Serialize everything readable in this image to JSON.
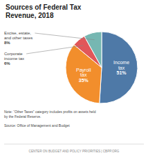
{
  "chart_data": {
    "type": "pie",
    "title": "Sources of Federal Tax\nRevenue, 2018",
    "categories": [
      "Income\ntax",
      "Payroll\ntax",
      "Corporate\nincome tax",
      "Excise, estate,\nand other taxes"
    ],
    "values": [
      51,
      35,
      6,
      8
    ],
    "value_labels": [
      "51%",
      "35%",
      "6%",
      "8%"
    ],
    "annotations": [
      "Note: “Other Taxes” category includes profits on assets held\nby the Federal Reserve.",
      "Source: Office of Management and Budget",
      "CENTER ON BUDGET AND POLICY PRIORITIES | CBPP.ORG"
    ]
  }
}
